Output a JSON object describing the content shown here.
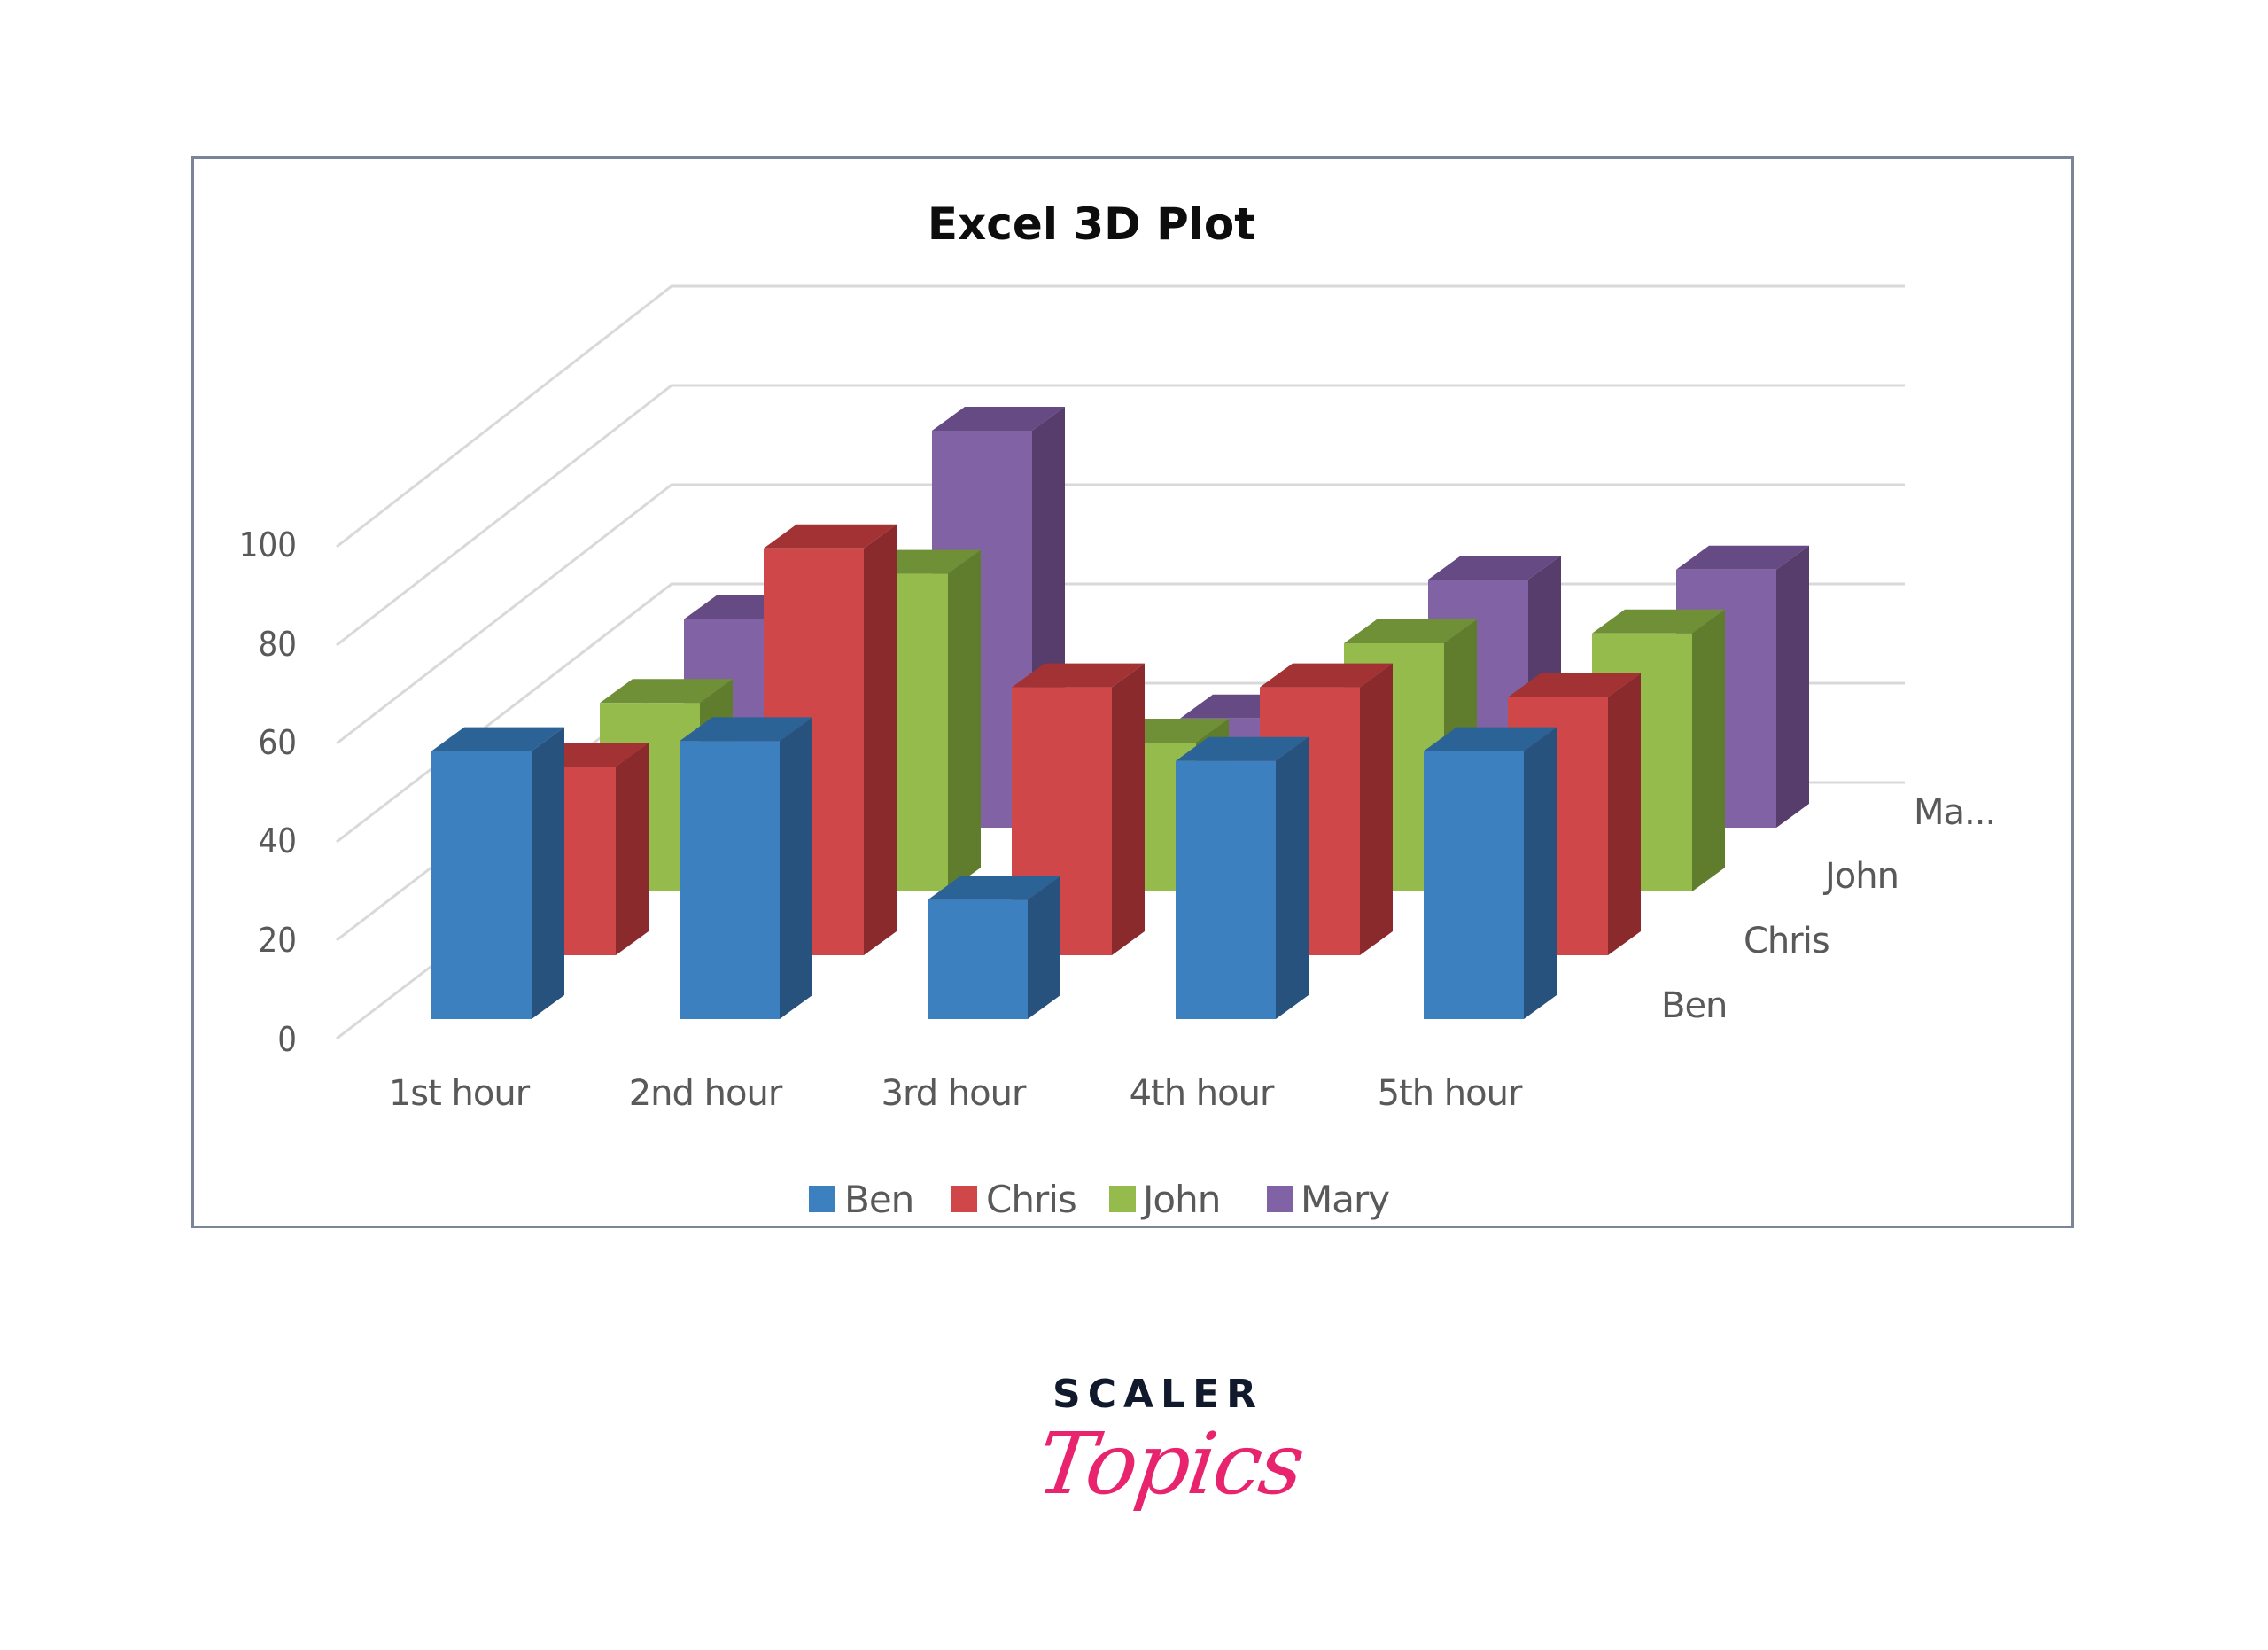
{
  "page": {
    "brand_top": "SCALER",
    "brand_script": "Topics"
  },
  "colors": {
    "frame_border": "#7c8598",
    "gridline": "#d9d9d9",
    "axis_text": "#595959",
    "title_text": "#0d0d0d",
    "brand_navy": "#111a2c",
    "brand_pink": "#e8246f"
  },
  "chart_data": {
    "type": "bar",
    "subtype": "3d-column",
    "title": "Excel 3D Plot",
    "xlabel": "",
    "ylabel": "",
    "ylim": [
      0,
      100
    ],
    "yticks": [
      0,
      20,
      40,
      60,
      80,
      100
    ],
    "ytick_labels": [
      "0",
      "20",
      "40",
      "60",
      "80",
      "100"
    ],
    "grid": true,
    "legend_position": "bottom",
    "categories": [
      "1st hour",
      "2nd hour",
      "3rd hour",
      "4th hour",
      "5th hour"
    ],
    "depth_labels": [
      "Ben",
      "Chris",
      "John",
      "Ma..."
    ],
    "series": [
      {
        "name": "Ben",
        "values": [
          54,
          56,
          24,
          52,
          54
        ],
        "color": "#3c80c0",
        "side": "#27527d",
        "top": "#2c6396"
      },
      {
        "name": "Chris",
        "values": [
          38,
          82,
          54,
          54,
          52
        ],
        "color": "#d0474a",
        "side": "#8a2a2c",
        "top": "#a33234"
      },
      {
        "name": "John",
        "values": [
          38,
          64,
          30,
          50,
          52
        ],
        "color": "#95bb4c",
        "side": "#5f7d2c",
        "top": "#6f9037"
      },
      {
        "name": "Mary",
        "values": [
          42,
          80,
          22,
          50,
          52
        ],
        "color": "#8162a4",
        "side": "#563d6c",
        "top": "#654a83"
      }
    ]
  }
}
